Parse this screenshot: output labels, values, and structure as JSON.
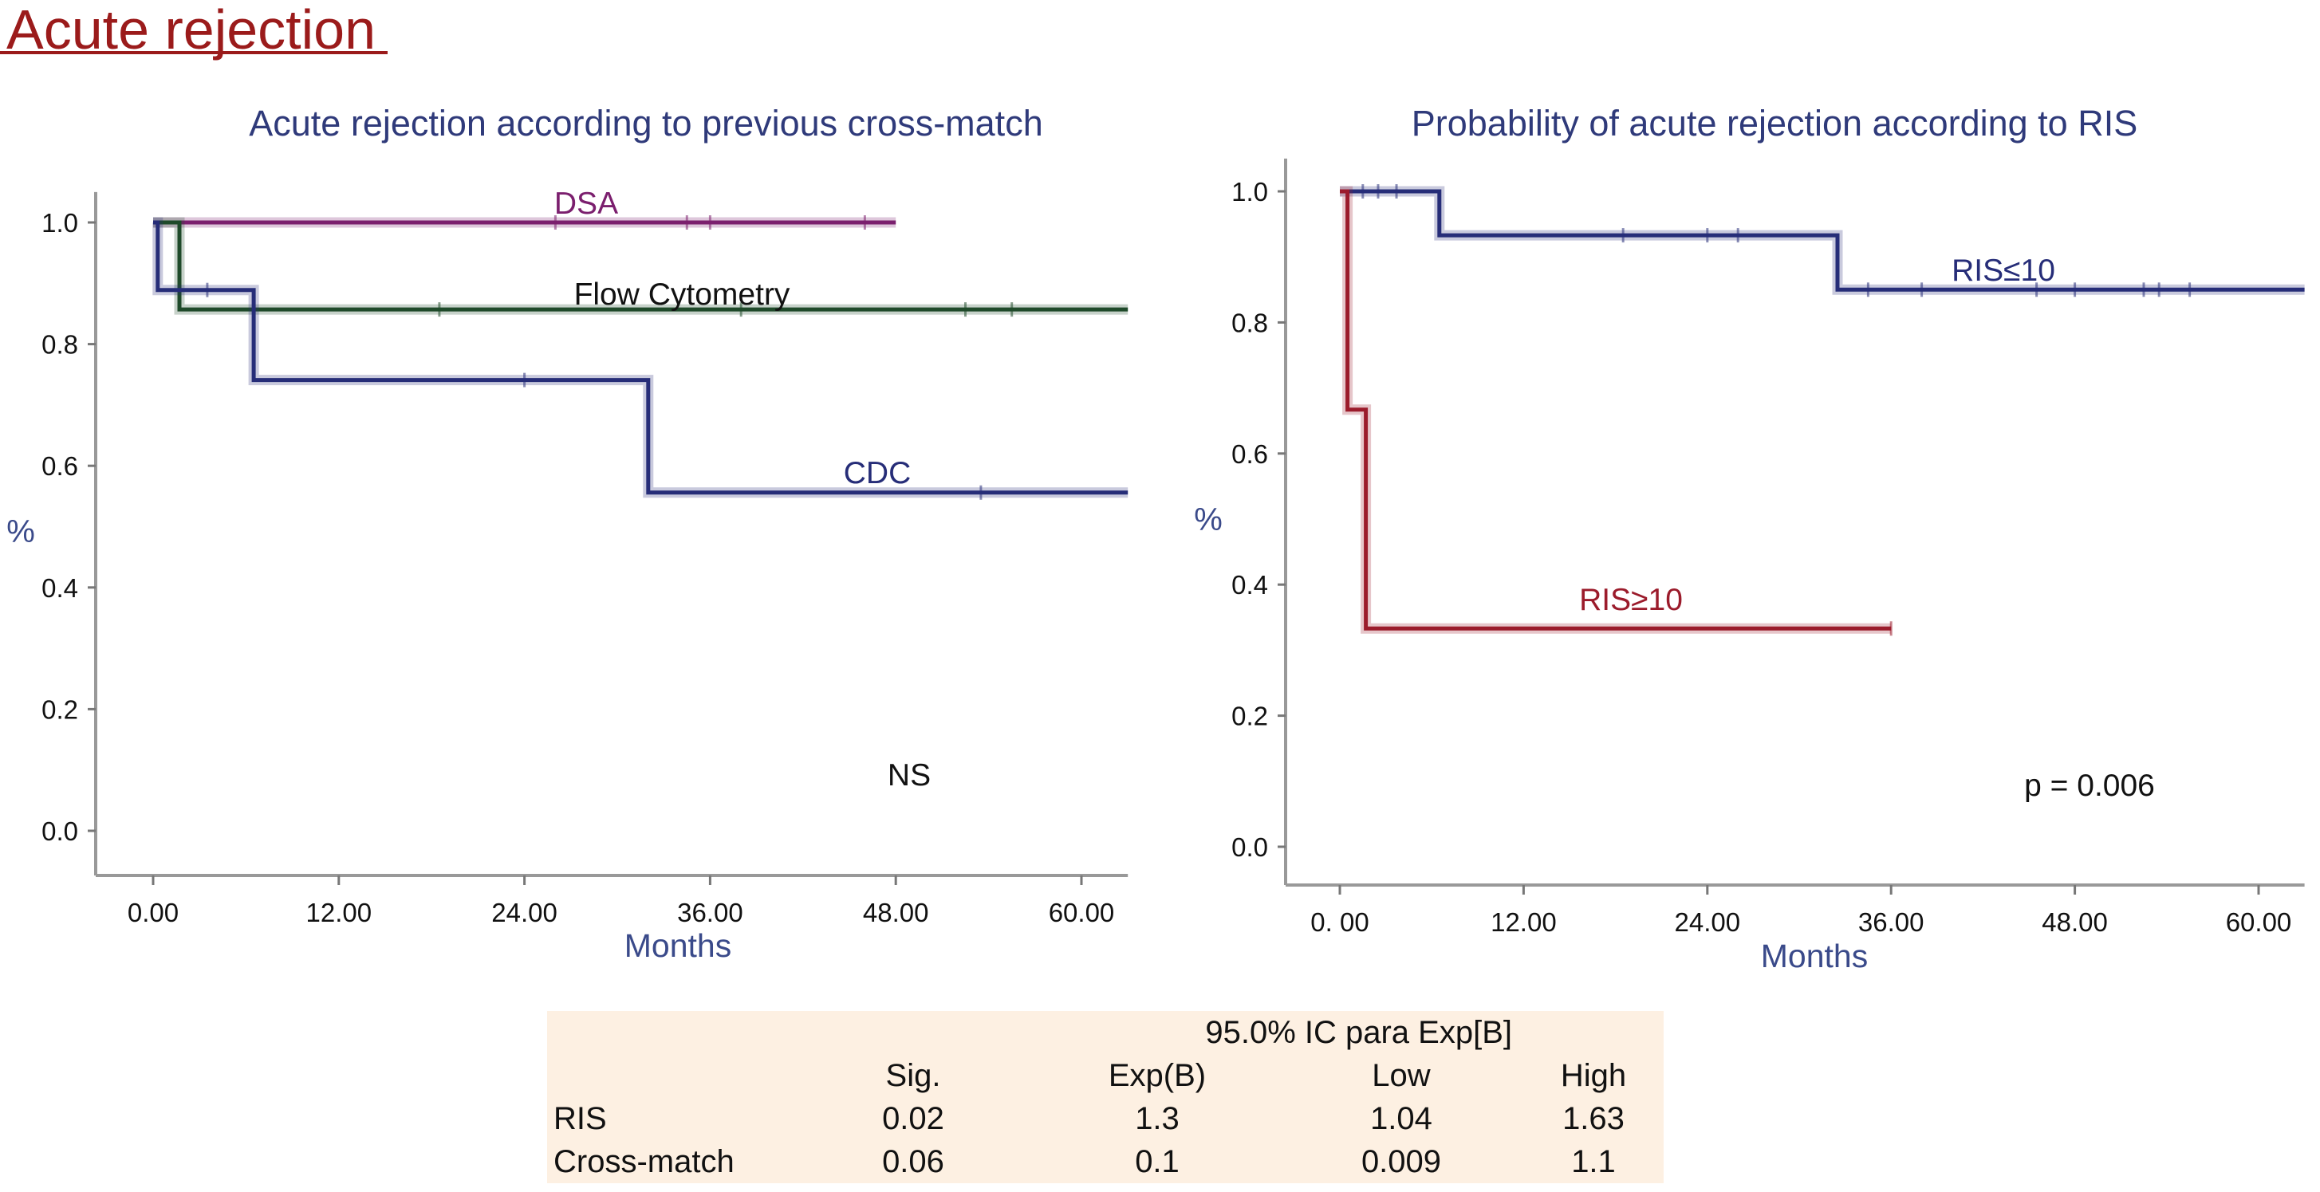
{
  "page": {
    "title": "Acute rejection"
  },
  "colors": {
    "title": "#9b1b1b",
    "chart_title": "#2f3a7a",
    "axis_label": "#3a4a8a",
    "dsa": "#7b1f6e",
    "flow": "#1f4a2a",
    "cdc": "#262d78",
    "ris_low": "#262d78",
    "ris_high": "#9b1b2b",
    "table_bg": "#fdf0e2"
  },
  "chart_data": [
    {
      "type": "line",
      "style": "step",
      "title": "Acute rejection according to previous cross-match",
      "xlabel": "Months",
      "ylabel": "%",
      "xticks": [
        "0.00",
        "12.00",
        "24.00",
        "36.00",
        "48.00",
        "60.00"
      ],
      "yticks": [
        "0.0",
        "0.2",
        "0.4",
        "0.6",
        "0.8",
        "1.0"
      ],
      "xlim": [
        -3,
        63
      ],
      "ylim": [
        -0.02,
        1.05
      ],
      "grid": false,
      "annotation": "NS",
      "series": [
        {
          "name": "DSA",
          "x": [
            0,
            48
          ],
          "y": [
            1.0,
            1.0
          ],
          "censored": [
            26,
            34.5,
            36,
            46
          ]
        },
        {
          "name": "Flow Cytometry",
          "x": [
            0,
            1.7,
            1.7,
            63
          ],
          "y": [
            1.0,
            1.0,
            0.857,
            0.857
          ],
          "censored": [
            18.5,
            38,
            52.5,
            55.5
          ]
        },
        {
          "name": "CDC",
          "x": [
            0,
            0.3,
            0.3,
            6.5,
            6.5,
            32,
            32,
            63
          ],
          "y": [
            1.0,
            1.0,
            0.889,
            0.889,
            0.741,
            0.741,
            0.556,
            0.556
          ],
          "censored": [
            3.5,
            24,
            53.5
          ]
        }
      ]
    },
    {
      "type": "line",
      "style": "step",
      "title": "Probability of acute rejection according to RIS",
      "xlabel": "Months",
      "ylabel": "%",
      "xticks": [
        "0. 00",
        "12.00",
        "24.00",
        "36.00",
        "48.00",
        "60.00"
      ],
      "yticks": [
        "0.0",
        "0.2",
        "0.4",
        "0.6",
        "0.8",
        "1.0"
      ],
      "xlim": [
        -3,
        63
      ],
      "ylim": [
        -0.02,
        1.05
      ],
      "grid": false,
      "annotation": "p = 0.006",
      "series": [
        {
          "name": "RIS≤10",
          "x": [
            0,
            6.5,
            6.5,
            32.5,
            32.5,
            63
          ],
          "y": [
            1.0,
            1.0,
            0.933,
            0.933,
            0.85,
            0.85
          ],
          "censored": [
            1.5,
            2.5,
            3.7,
            18.5,
            24,
            26,
            34.5,
            38,
            45.5,
            48,
            52.5,
            53.5,
            55.5
          ]
        },
        {
          "name": "RIS≥10",
          "x": [
            0,
            0.5,
            0.5,
            1.7,
            1.7,
            36
          ],
          "y": [
            1.0,
            1.0,
            0.667,
            0.667,
            0.333,
            0.333
          ],
          "censored": [
            36
          ]
        }
      ]
    }
  ],
  "table": {
    "group_header": "95.0% IC para Exp[B]",
    "columns": [
      "",
      "Sig.",
      "Exp(B)",
      "Low",
      "High"
    ],
    "rows": [
      {
        "label": "RIS",
        "values": [
          "0.02",
          "1.3",
          "1.04",
          "1.63"
        ]
      },
      {
        "label": "Cross-match",
        "values": [
          "0.06",
          "0.1",
          "0.009",
          "1.1"
        ]
      }
    ]
  }
}
